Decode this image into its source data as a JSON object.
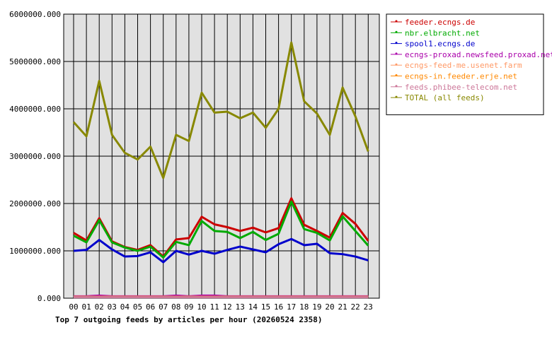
{
  "chart_data": {
    "type": "line",
    "title": "Top 7 outgoing feeds by articles per hour (20260524 2358)",
    "xlabel": "",
    "ylabel": "",
    "ylim": [
      0,
      6000000
    ],
    "y_ticks": [
      0,
      1000000,
      2000000,
      3000000,
      4000000,
      5000000,
      6000000
    ],
    "y_tick_labels": [
      "0.000",
      "1000000.000",
      "2000000.000",
      "3000000.000",
      "4000000.000",
      "5000000.000",
      "6000000.000"
    ],
    "categories": [
      "00",
      "01",
      "02",
      "03",
      "04",
      "05",
      "06",
      "07",
      "08",
      "09",
      "10",
      "11",
      "12",
      "13",
      "14",
      "15",
      "16",
      "17",
      "18",
      "19",
      "20",
      "21",
      "22",
      "23"
    ],
    "grid": true,
    "legend_position": "right",
    "series": [
      {
        "name": "feeder.ecngs.de",
        "color": "#cc0000",
        "values": [
          1380000,
          1220000,
          1690000,
          1200000,
          1080000,
          1020000,
          1120000,
          880000,
          1240000,
          1270000,
          1720000,
          1560000,
          1500000,
          1420000,
          1490000,
          1390000,
          1480000,
          2110000,
          1550000,
          1420000,
          1280000,
          1800000,
          1570000,
          1210000
        ]
      },
      {
        "name": "nbr.elbracht.net",
        "color": "#00aa00",
        "values": [
          1320000,
          1180000,
          1650000,
          1180000,
          1070000,
          1000000,
          1090000,
          860000,
          1190000,
          1120000,
          1630000,
          1420000,
          1400000,
          1270000,
          1400000,
          1230000,
          1360000,
          2040000,
          1460000,
          1380000,
          1220000,
          1730000,
          1420000,
          1110000
        ]
      },
      {
        "name": "spool1.ecngs.de",
        "color": "#0000cc",
        "values": [
          1000000,
          1020000,
          1230000,
          1030000,
          880000,
          890000,
          970000,
          760000,
          1000000,
          920000,
          1000000,
          940000,
          1020000,
          1090000,
          1030000,
          970000,
          1140000,
          1250000,
          1120000,
          1150000,
          950000,
          930000,
          880000,
          800000
        ]
      },
      {
        "name": "ecngs-proxad.newsfeed.proxad.net",
        "color": "#aa00aa",
        "values": [
          40000,
          40000,
          55000,
          40000,
          40000,
          40000,
          40000,
          40000,
          55000,
          40000,
          55000,
          55000,
          40000,
          40000,
          40000,
          40000,
          40000,
          40000,
          40000,
          40000,
          40000,
          40000,
          40000,
          40000
        ]
      },
      {
        "name": "ecngs-feed-me.usenet.farm",
        "color": "#ff9966",
        "values": [
          30000,
          30000,
          30000,
          30000,
          30000,
          30000,
          30000,
          30000,
          30000,
          30000,
          30000,
          30000,
          30000,
          30000,
          30000,
          30000,
          30000,
          30000,
          30000,
          30000,
          30000,
          30000,
          30000,
          30000
        ]
      },
      {
        "name": "ecngs-in.feeder.erje.net",
        "color": "#ff8800",
        "values": [
          25000,
          25000,
          25000,
          25000,
          25000,
          25000,
          25000,
          25000,
          25000,
          25000,
          25000,
          25000,
          25000,
          25000,
          25000,
          25000,
          25000,
          25000,
          25000,
          25000,
          25000,
          25000,
          25000,
          25000
        ]
      },
      {
        "name": "feeds.phibee-telecom.net",
        "color": "#cc7799",
        "values": [
          20000,
          20000,
          20000,
          20000,
          20000,
          20000,
          20000,
          20000,
          20000,
          20000,
          20000,
          20000,
          20000,
          20000,
          20000,
          20000,
          20000,
          20000,
          20000,
          20000,
          20000,
          20000,
          20000,
          20000
        ]
      },
      {
        "name": "TOTAL (all feeds)",
        "color": "#888800",
        "values": [
          3720000,
          3420000,
          4590000,
          3450000,
          3070000,
          2930000,
          3200000,
          2540000,
          3450000,
          3320000,
          4340000,
          3920000,
          3940000,
          3800000,
          3920000,
          3600000,
          4000000,
          5400000,
          4160000,
          3900000,
          3450000,
          4450000,
          3840000,
          3100000
        ]
      }
    ]
  }
}
